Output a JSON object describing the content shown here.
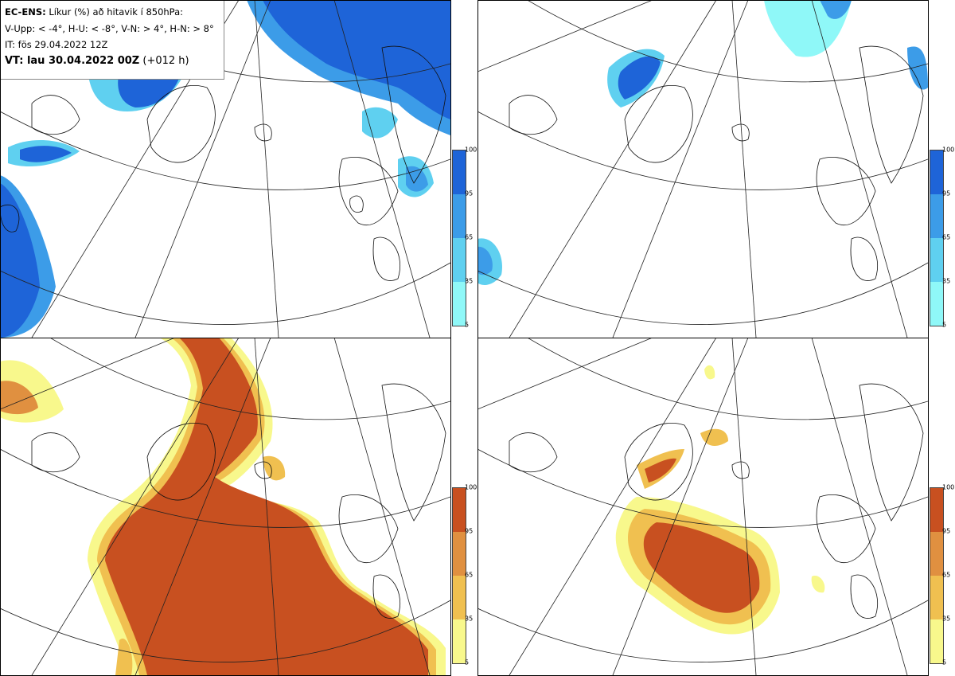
{
  "header": {
    "product": "EC-ENS:",
    "title_rest": "Líkur (%) að hitavik í 850hPa:",
    "thresholds": "V-Upp: < -4°, H-U: < -8°, V-N: > 4°, H-N: > 8°",
    "init_time": "IT: fös 29.04.2022 12Z",
    "valid_time": "VT: lau 30.04.2022 00Z",
    "lead": "(+012 h)"
  },
  "colorbar": {
    "ticks": [
      "100",
      "95",
      "65",
      "35",
      "5"
    ],
    "cold_colors": [
      "#8ff8f8",
      "#5fd0f0",
      "#3c9ce8",
      "#1e64d8"
    ],
    "warm_colors": [
      "#f8f88c",
      "#f0c050",
      "#e09040",
      "#c85020"
    ]
  },
  "panels": [
    {
      "id": "V-Upp",
      "field": "below -4°",
      "palette": "cold"
    },
    {
      "id": "H-U",
      "field": "below -8°",
      "palette": "cold"
    },
    {
      "id": "V-N",
      "field": "above 4°",
      "palette": "warm"
    },
    {
      "id": "H-N",
      "field": "above 8°",
      "palette": "warm"
    }
  ]
}
